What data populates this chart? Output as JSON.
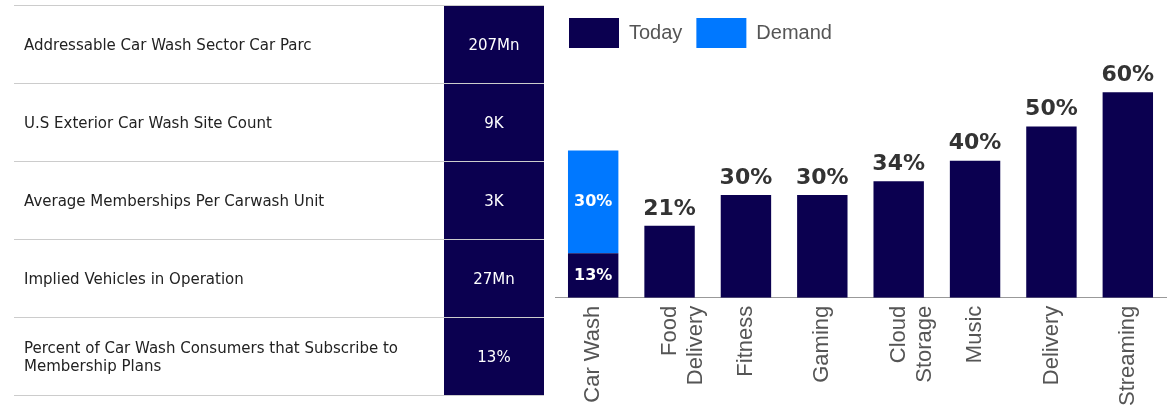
{
  "chart_data": [
    {
      "type": "other",
      "categories": [
        "Addressable Car Wash Sector Car Parc",
        "U.S Exterior Car Wash Site Count",
        "Average Memberships Per Carwash Unit",
        "Implied Vehicles in Operation",
        "Percent of Car Wash Consumers that Subscribe to Membership Plans"
      ],
      "value_labels": [
        "207Mn",
        "9K",
        "3K",
        "27Mn",
        "13%"
      ],
      "color": "#0b0050"
    },
    {
      "type": "bar",
      "stacked": true,
      "legend": "top left",
      "categories": [
        "Car Wash",
        "Food\nDelivery",
        "Fitness",
        "Gaming",
        "Cloud\nStorage",
        "Music",
        "Delivery",
        "Streaming"
      ],
      "series": [
        {
          "name": "Today",
          "color": "#0b0050",
          "values": [
            13,
            21,
            30,
            30,
            34,
            40,
            50,
            60
          ],
          "value_labels": [
            "13%",
            "21%",
            "30%",
            "30%",
            "34%",
            "40%",
            "50%",
            "60%"
          ]
        },
        {
          "name": "Demand",
          "color": "#0078ff",
          "values": [
            30,
            null,
            null,
            null,
            null,
            null,
            null,
            null
          ],
          "value_labels": [
            "30%",
            null,
            null,
            null,
            null,
            null,
            null,
            null
          ]
        }
      ]
    }
  ]
}
